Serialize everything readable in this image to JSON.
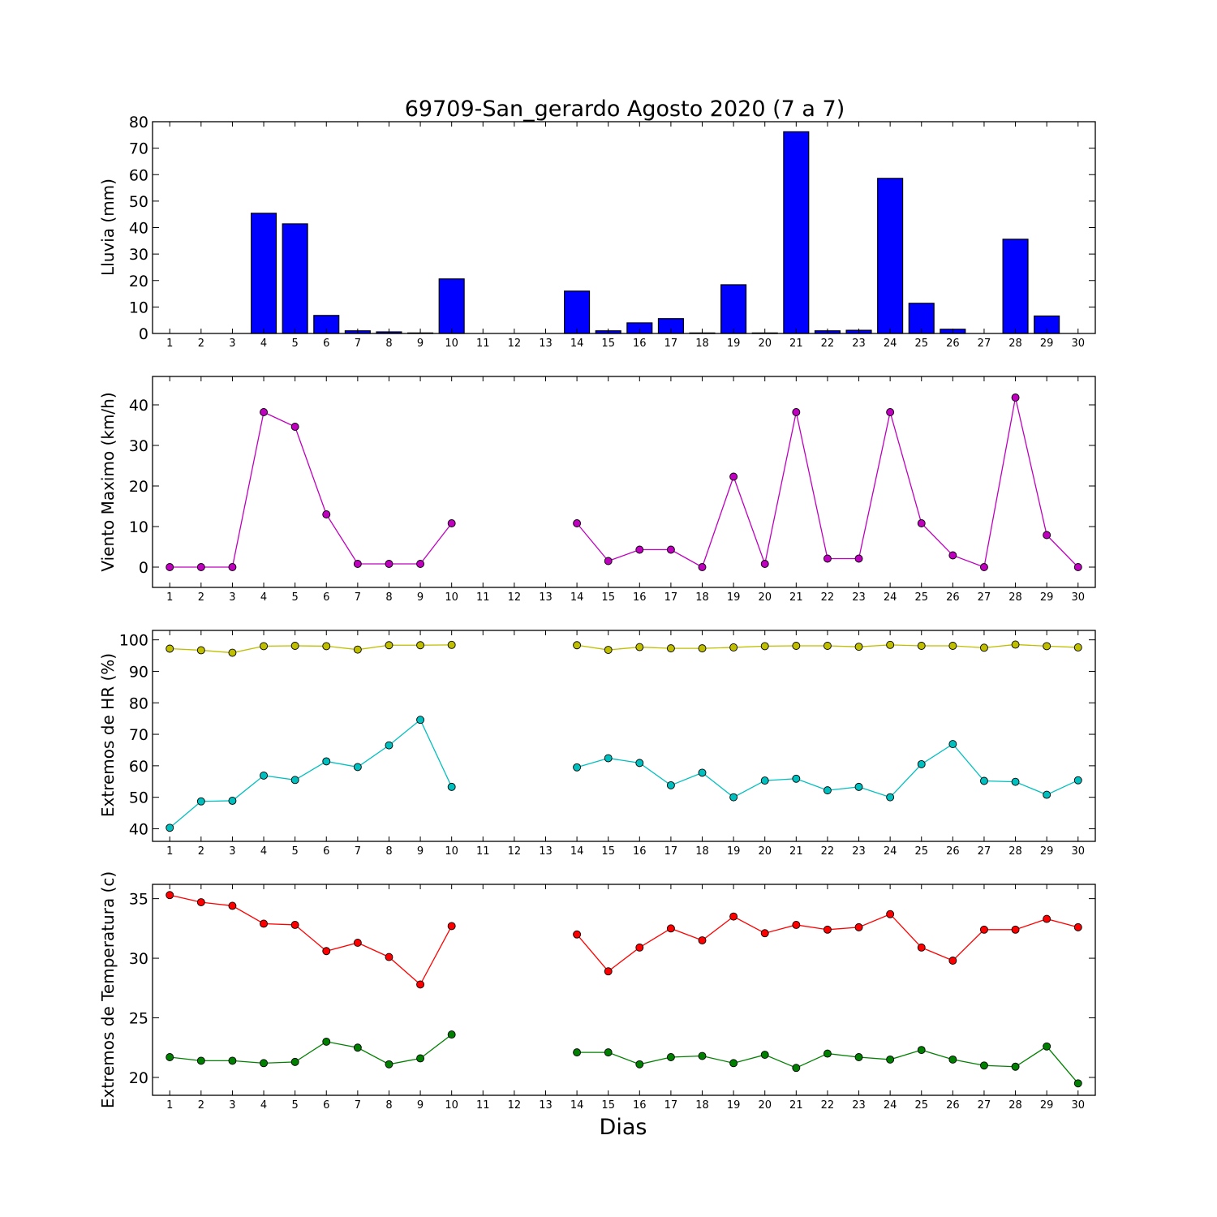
{
  "figure": {
    "title": "69709-San_gerardo Agosto 2020  (7 a 7)",
    "xlabel": "Dias"
  },
  "chart_data": [
    {
      "type": "bar",
      "ylabel": "Lluvia (mm)",
      "ylim": [
        0,
        80
      ],
      "yticks": [
        0,
        10,
        20,
        30,
        40,
        50,
        60,
        70,
        80
      ],
      "categories": [
        "1",
        "2",
        "3",
        "4",
        "5",
        "6",
        "7",
        "8",
        "9",
        "10",
        "11",
        "12",
        "13",
        "14",
        "15",
        "16",
        "17",
        "18",
        "19",
        "20",
        "21",
        "22",
        "23",
        "24",
        "25",
        "26",
        "27",
        "28",
        "29",
        "30"
      ],
      "series": [
        {
          "color": "#0000ff",
          "values": [
            0,
            0,
            0,
            45.4,
            41.4,
            6.8,
            1.0,
            0.6,
            0.2,
            20.6,
            null,
            null,
            null,
            16.0,
            1.0,
            4.0,
            5.6,
            0.2,
            18.4,
            0.2,
            76.2,
            1.0,
            1.2,
            58.6,
            11.4,
            1.6,
            0,
            35.6,
            6.6,
            0
          ]
        }
      ],
      "grid": false
    },
    {
      "type": "line",
      "ylabel": "Viento Maximo (km/h)",
      "ylim": [
        -5,
        47
      ],
      "yticks": [
        0,
        10,
        20,
        30,
        40
      ],
      "categories": [
        "1",
        "2",
        "3",
        "4",
        "5",
        "6",
        "7",
        "8",
        "9",
        "10",
        "11",
        "12",
        "13",
        "14",
        "15",
        "16",
        "17",
        "18",
        "19",
        "20",
        "21",
        "22",
        "23",
        "24",
        "25",
        "26",
        "27",
        "28",
        "29",
        "30"
      ],
      "series": [
        {
          "color": "#bf00bf",
          "values": [
            0,
            0,
            0,
            38.2,
            34.6,
            13.0,
            0.8,
            0.8,
            0.8,
            10.8,
            null,
            null,
            null,
            10.8,
            1.5,
            4.3,
            4.3,
            0,
            22.3,
            0.8,
            38.2,
            2.1,
            2.1,
            38.2,
            10.8,
            2.9,
            0,
            41.8,
            7.9,
            0
          ]
        }
      ],
      "grid": false
    },
    {
      "type": "line",
      "ylabel": "Extremos de HR (%)",
      "ylim": [
        36,
        103
      ],
      "yticks": [
        40,
        50,
        60,
        70,
        80,
        90,
        100
      ],
      "categories": [
        "1",
        "2",
        "3",
        "4",
        "5",
        "6",
        "7",
        "8",
        "9",
        "10",
        "11",
        "12",
        "13",
        "14",
        "15",
        "16",
        "17",
        "18",
        "19",
        "20",
        "21",
        "22",
        "23",
        "24",
        "25",
        "26",
        "27",
        "28",
        "29",
        "30"
      ],
      "series": [
        {
          "color": "#bfbf00",
          "values": [
            97.2,
            96.7,
            95.9,
            98.0,
            98.1,
            98.0,
            96.9,
            98.3,
            98.3,
            98.4,
            null,
            null,
            null,
            98.3,
            96.8,
            97.7,
            97.3,
            97.3,
            97.6,
            98.0,
            98.1,
            98.1,
            97.8,
            98.4,
            98.1,
            98.1,
            97.5,
            98.5,
            98.0,
            97.6
          ]
        },
        {
          "color": "#00bfbf",
          "values": [
            40.3,
            48.7,
            48.9,
            56.9,
            55.5,
            61.4,
            59.6,
            66.5,
            74.6,
            53.3,
            null,
            null,
            null,
            59.5,
            62.4,
            60.9,
            53.8,
            57.8,
            50.0,
            55.3,
            55.9,
            52.2,
            53.3,
            50.0,
            60.5,
            66.9,
            55.2,
            54.9,
            50.8,
            55.4
          ]
        }
      ],
      "grid": false
    },
    {
      "type": "line",
      "ylabel": "Extremos de Temperatura (c)",
      "ylim": [
        18.5,
        36.2
      ],
      "yticks": [
        20,
        25,
        30,
        35
      ],
      "categories": [
        "1",
        "2",
        "3",
        "4",
        "5",
        "6",
        "7",
        "8",
        "9",
        "10",
        "11",
        "12",
        "13",
        "14",
        "15",
        "16",
        "17",
        "18",
        "19",
        "20",
        "21",
        "22",
        "23",
        "24",
        "25",
        "26",
        "27",
        "28",
        "29",
        "30"
      ],
      "series": [
        {
          "color": "#ff0000",
          "values": [
            35.3,
            34.7,
            34.4,
            32.9,
            32.8,
            30.6,
            31.3,
            30.1,
            27.8,
            32.7,
            null,
            null,
            null,
            32.0,
            28.9,
            30.9,
            32.5,
            31.5,
            33.5,
            32.1,
            32.8,
            32.4,
            32.6,
            33.7,
            30.9,
            29.8,
            32.4,
            32.4,
            33.3,
            32.6
          ]
        },
        {
          "color": "#008000",
          "values": [
            21.7,
            21.4,
            21.4,
            21.2,
            21.3,
            23.0,
            22.5,
            21.1,
            21.6,
            23.6,
            null,
            null,
            null,
            22.1,
            22.1,
            21.1,
            21.7,
            21.8,
            21.2,
            21.9,
            20.8,
            22.0,
            21.7,
            21.5,
            22.3,
            21.5,
            21.0,
            20.9,
            22.6,
            19.5
          ]
        }
      ],
      "grid": false
    }
  ]
}
